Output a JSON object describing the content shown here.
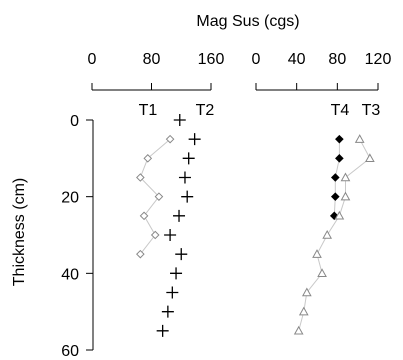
{
  "chart_data": {
    "type": "scatter",
    "title": "",
    "top_axis_label": "Mag Sus (cgs)",
    "ylabel": "Thickness (cm)",
    "ylim": [
      0,
      60
    ],
    "yticks": [
      "0",
      "20",
      "40",
      "60"
    ],
    "y_tick_values": [
      0,
      20,
      40,
      60
    ],
    "inverted_y": true,
    "panels": [
      {
        "xlim": [
          0,
          160
        ],
        "xticks": [
          "0",
          "80",
          "160"
        ],
        "x_tick_values": [
          0,
          80,
          160
        ],
        "series": [
          {
            "name": "T1",
            "marker": "diamond-open",
            "x": [
              105,
              75,
              65,
              90,
              70,
              85,
              65
            ],
            "y": [
              5,
              10,
              15,
              20,
              25,
              30,
              35
            ]
          },
          {
            "name": "T2",
            "marker": "plus",
            "x": [
              138,
              130,
              125,
              128,
              117,
              105,
              120,
              113,
              108,
              102,
              95,
              118
            ],
            "y": [
              5,
              10,
              15,
              20,
              25,
              30,
              35,
              40,
              45,
              50,
              55,
              0
            ]
          }
        ]
      },
      {
        "xlim": [
          0,
          120
        ],
        "xticks": [
          "0",
          "40",
          "80",
          "120"
        ],
        "x_tick_values": [
          0,
          40,
          80,
          120
        ],
        "series": [
          {
            "name": "T4",
            "marker": "diamond-filled",
            "x": [
              82,
              82,
              78,
              78,
              77
            ],
            "y": [
              5,
              10,
              15,
              20,
              25
            ]
          },
          {
            "name": "T3",
            "marker": "triangle-open",
            "x": [
              102,
              112,
              88,
              88,
              82,
              70,
              60,
              65,
              50,
              47,
              42
            ],
            "y": [
              5,
              10,
              15,
              20,
              25,
              30,
              35,
              40,
              45,
              50,
              55
            ]
          }
        ]
      }
    ]
  }
}
